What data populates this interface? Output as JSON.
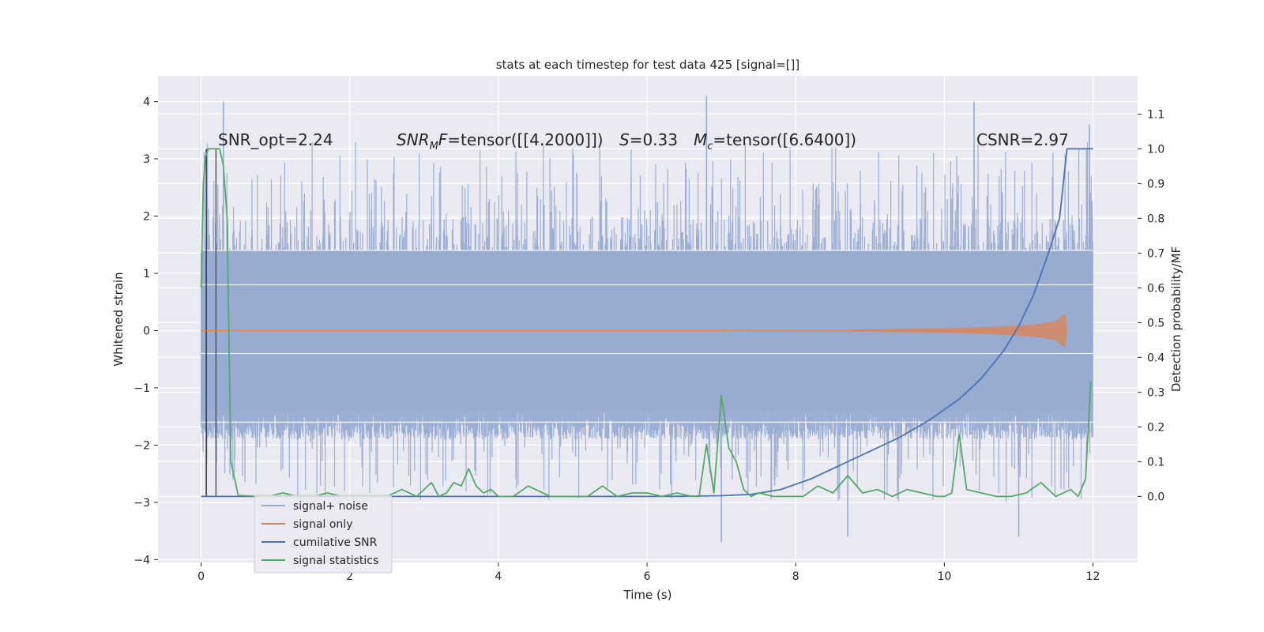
{
  "chart_data": {
    "type": "line",
    "title": "stats at each timestep for test data 425 [signal=[]]",
    "xlabel": "Time (s)",
    "ylabel": "Whitened strain",
    "ylabel_right": "Detection probability/MF",
    "xlim": [
      -0.58,
      12.6
    ],
    "ylim": [
      -4.05,
      4.45
    ],
    "ylim_right": [
      -0.19,
      1.21
    ],
    "xticks": [
      0,
      2,
      4,
      6,
      8,
      10,
      12
    ],
    "xtick_labels": [
      "0",
      "2",
      "4",
      "6",
      "8",
      "10",
      "12"
    ],
    "yticks": [
      4,
      3,
      2,
      1,
      0,
      -1,
      -2,
      -3,
      -4
    ],
    "ytick_labels": [
      "4",
      "3",
      "2",
      "1",
      "0",
      "−1",
      "−2",
      "−3",
      "−4"
    ],
    "yticks_right": [
      1.1,
      1.0,
      0.9,
      0.8,
      0.7,
      0.6,
      0.5,
      0.4,
      0.3,
      0.2,
      0.1,
      0.0
    ],
    "ytick_labels_right": [
      "1.1",
      "1.0",
      "0.9",
      "0.8",
      "0.7",
      "0.6",
      "0.5",
      "0.4",
      "0.3",
      "0.2",
      "0.1",
      "0.0"
    ],
    "grid": true,
    "legend_position": "lower-left",
    "annotations": {
      "snr_opt": "SNR_opt=2.24",
      "snr_mf_label": "SNR",
      "snr_mf_sub": "M",
      "snr_mf_italic": "F",
      "snr_mf_value": "=tensor([[4.2000]])",
      "s_label": "S",
      "s_value": "=0.33",
      "mc_label": "M",
      "mc_sub": "c",
      "mc_value": "=tensor([6.6400])",
      "csnr": "CSNR=2.97"
    },
    "series": [
      {
        "name": "signal+ noise",
        "color": "#98abd1",
        "axis": "left",
        "kind": "noise",
        "x_range": [
          0,
          12
        ],
        "core_amplitude": 1.4,
        "typical_peak_range": [
          2.0,
          3.3
        ],
        "max_peaks": [
          [
            0.3,
            4.0
          ],
          [
            6.8,
            4.1
          ],
          [
            10.4,
            4.0
          ],
          [
            11.95,
            3.6
          ],
          [
            7.0,
            -3.7
          ],
          [
            8.7,
            -3.6
          ],
          [
            11.0,
            -3.6
          ]
        ]
      },
      {
        "name": "signal only",
        "color": "#dd8452",
        "axis": "left",
        "kind": "chirp",
        "x": [
          0,
          4,
          6,
          8,
          9,
          10,
          10.5,
          11,
          11.3,
          11.5,
          11.62,
          11.64,
          11.65
        ],
        "envelope": [
          0.0,
          0.002,
          0.005,
          0.01,
          0.02,
          0.04,
          0.06,
          0.09,
          0.12,
          0.17,
          0.3,
          0.2,
          0.0
        ]
      },
      {
        "name": "cumilative SNR",
        "color": "#4c72b0",
        "axis": "right",
        "x": [
          0,
          5.0,
          6.0,
          6.5,
          7.0,
          7.4,
          7.8,
          8.2,
          8.6,
          9.0,
          9.4,
          9.8,
          10.2,
          10.5,
          10.8,
          11.0,
          11.2,
          11.4,
          11.55,
          11.65,
          12.0
        ],
        "values": [
          0.0,
          0.0,
          0.0,
          0.0005,
          0.002,
          0.006,
          0.02,
          0.05,
          0.09,
          0.13,
          0.17,
          0.22,
          0.28,
          0.34,
          0.42,
          0.49,
          0.58,
          0.7,
          0.8,
          1.0,
          1.0
        ]
      },
      {
        "name": "signal statistics",
        "color": "#55a868",
        "axis": "right",
        "x": [
          0.0,
          0.03,
          0.06,
          0.1,
          0.15,
          0.2,
          0.25,
          0.3,
          0.35,
          0.4,
          0.5,
          0.7,
          0.9,
          1.1,
          1.3,
          1.5,
          1.7,
          1.9,
          2.1,
          2.3,
          2.5,
          2.7,
          2.9,
          3.1,
          3.2,
          3.3,
          3.4,
          3.5,
          3.6,
          3.7,
          3.8,
          3.9,
          4.0,
          4.2,
          4.4,
          4.6,
          4.7,
          4.8,
          5.0,
          5.2,
          5.4,
          5.6,
          5.8,
          6.0,
          6.2,
          6.4,
          6.6,
          6.7,
          6.8,
          6.9,
          7.0,
          7.1,
          7.2,
          7.3,
          7.4,
          7.5,
          7.7,
          7.9,
          8.1,
          8.3,
          8.5,
          8.7,
          8.9,
          9.1,
          9.3,
          9.5,
          9.7,
          9.9,
          10.0,
          10.1,
          10.2,
          10.3,
          10.5,
          10.7,
          10.9,
          11.1,
          11.3,
          11.5,
          11.7,
          11.8,
          11.9,
          11.97
        ],
        "values": [
          0.6,
          0.9,
          0.98,
          1.0,
          1.0,
          1.0,
          1.0,
          0.95,
          0.8,
          0.1,
          0.003,
          0.001,
          0.0,
          0.01,
          0.0,
          0.0,
          0.01,
          0.0,
          0.0,
          0.0,
          0.0,
          0.02,
          0.0,
          0.04,
          0.0,
          0.01,
          0.04,
          0.03,
          0.08,
          0.03,
          0.01,
          0.02,
          0.0,
          0.0,
          0.03,
          0.01,
          0.0,
          0.0,
          0.0,
          0.0,
          0.03,
          0.0,
          0.01,
          0.01,
          0.0,
          0.01,
          0.0,
          0.0,
          0.15,
          0.01,
          0.29,
          0.14,
          0.1,
          0.02,
          0.0,
          0.01,
          0.0,
          0.0,
          0.0,
          0.03,
          0.01,
          0.06,
          0.01,
          0.02,
          0.0,
          0.02,
          0.01,
          0.0,
          0.0,
          0.01,
          0.18,
          0.02,
          0.01,
          0.0,
          0.0,
          0.01,
          0.04,
          0.0,
          0.02,
          0.0,
          0.05,
          0.33
        ]
      }
    ],
    "vertical_lines": [
      {
        "x": 0.07,
        "color": "#333333"
      },
      {
        "x": 0.2,
        "color": "#555555"
      }
    ]
  }
}
